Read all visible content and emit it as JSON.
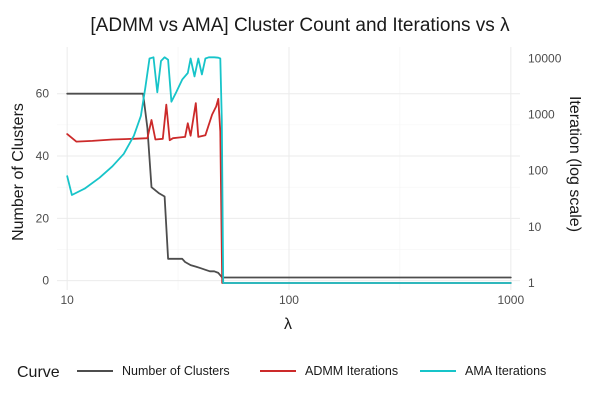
{
  "chart_data": {
    "type": "line",
    "title": "[ADMM vs AMA] Cluster Count and Iterations vs λ",
    "xlabel": "λ",
    "ylabel": "Number of Clusters",
    "y2label": "Iteration (log scale)",
    "x_scale": "log",
    "xlim": [
      9,
      1100
    ],
    "ylim": [
      -3,
      75
    ],
    "y2_scale": "log",
    "y2lim": [
      0.75,
      16000
    ],
    "grid": true,
    "x_ticks": [
      {
        "value": 10,
        "label": "10"
      },
      {
        "value": 100,
        "label": "100"
      },
      {
        "value": 1000,
        "label": "1000"
      }
    ],
    "y_ticks": [
      {
        "value": 0,
        "label": "0"
      },
      {
        "value": 20,
        "label": "20"
      },
      {
        "value": 40,
        "label": "40"
      },
      {
        "value": 60,
        "label": "60"
      }
    ],
    "y2_ticks": [
      {
        "value": 1,
        "label": "1"
      },
      {
        "value": 10,
        "label": "10"
      },
      {
        "value": 100,
        "label": "100"
      },
      {
        "value": 1000,
        "label": "1000"
      },
      {
        "value": 10000,
        "label": "10000"
      }
    ],
    "legend": {
      "title": "Curve",
      "position": "bottom"
    },
    "series": [
      {
        "name": "Number of Clusters",
        "axis": "left",
        "color": "#4d4d4d",
        "points": [
          [
            10,
            60
          ],
          [
            22,
            60
          ],
          [
            23,
            49
          ],
          [
            24,
            30
          ],
          [
            26,
            28
          ],
          [
            27.5,
            27
          ],
          [
            28.5,
            7
          ],
          [
            30,
            7
          ],
          [
            33,
            7
          ],
          [
            34,
            6
          ],
          [
            36,
            5
          ],
          [
            38,
            4.5
          ],
          [
            40,
            4
          ],
          [
            42,
            3.5
          ],
          [
            44,
            3
          ],
          [
            46,
            3
          ],
          [
            48,
            2.5
          ],
          [
            50,
            1
          ],
          [
            1000,
            1
          ]
        ]
      },
      {
        "name": "ADMM Iterations",
        "axis": "right",
        "color": "#cc2a2a",
        "points": [
          [
            10,
            450
          ],
          [
            11,
            330
          ],
          [
            13,
            340
          ],
          [
            16,
            360
          ],
          [
            20,
            370
          ],
          [
            23,
            380
          ],
          [
            24,
            800
          ],
          [
            25,
            360
          ],
          [
            27,
            370
          ],
          [
            28,
            1500
          ],
          [
            29,
            350
          ],
          [
            30,
            380
          ],
          [
            32,
            390
          ],
          [
            34,
            400
          ],
          [
            35,
            700
          ],
          [
            36,
            420
          ],
          [
            38,
            1600
          ],
          [
            39,
            400
          ],
          [
            42,
            430
          ],
          [
            45,
            1000
          ],
          [
            47,
            1400
          ],
          [
            48,
            1900
          ],
          [
            49,
            500
          ],
          [
            50,
            1
          ],
          [
            1000,
            1
          ]
        ]
      },
      {
        "name": "AMA Iterations",
        "axis": "right",
        "color": "#17c4c9",
        "points": [
          [
            10,
            80
          ],
          [
            10.5,
            37
          ],
          [
            12,
            48
          ],
          [
            14,
            75
          ],
          [
            16,
            120
          ],
          [
            18,
            200
          ],
          [
            20,
            420
          ],
          [
            21.5,
            950
          ],
          [
            22.5,
            3000
          ],
          [
            23.5,
            10000
          ],
          [
            24.5,
            10500
          ],
          [
            25.5,
            2500
          ],
          [
            26.5,
            9000
          ],
          [
            27.5,
            10500
          ],
          [
            28.5,
            9500
          ],
          [
            29.5,
            1700
          ],
          [
            31,
            2500
          ],
          [
            33,
            4200
          ],
          [
            35,
            5500
          ],
          [
            36,
            10000
          ],
          [
            37.5,
            4800
          ],
          [
            39,
            10000
          ],
          [
            40.5,
            5200
          ],
          [
            42,
            10000
          ],
          [
            43.5,
            10500
          ],
          [
            46,
            10500
          ],
          [
            48,
            10300
          ],
          [
            49,
            10000
          ],
          [
            49.8,
            800
          ],
          [
            50.5,
            1
          ],
          [
            1000,
            1
          ]
        ]
      }
    ]
  }
}
